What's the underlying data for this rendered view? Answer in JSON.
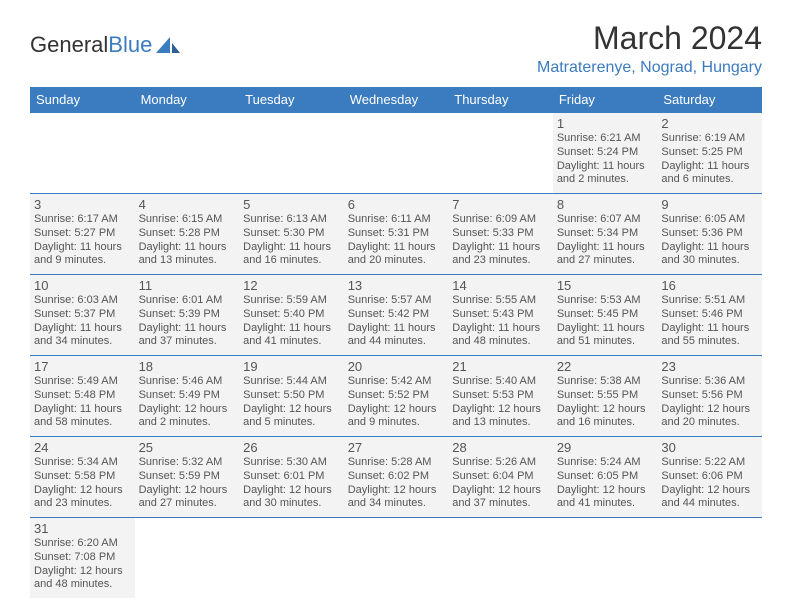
{
  "brand": {
    "text1": "General",
    "text2": "Blue"
  },
  "header": {
    "month": "March 2024",
    "location": "Matraterenye, Nograd, Hungary"
  },
  "colors": {
    "accent": "#3b7bbf",
    "cell_bg": "#f3f3f3",
    "text": "#333333"
  },
  "weekdays": [
    "Sunday",
    "Monday",
    "Tuesday",
    "Wednesday",
    "Thursday",
    "Friday",
    "Saturday"
  ],
  "weeks": [
    [
      null,
      null,
      null,
      null,
      null,
      {
        "d": "1",
        "sr": "Sunrise: 6:21 AM",
        "ss": "Sunset: 5:24 PM",
        "dl1": "Daylight: 11 hours",
        "dl2": "and 2 minutes."
      },
      {
        "d": "2",
        "sr": "Sunrise: 6:19 AM",
        "ss": "Sunset: 5:25 PM",
        "dl1": "Daylight: 11 hours",
        "dl2": "and 6 minutes."
      }
    ],
    [
      {
        "d": "3",
        "sr": "Sunrise: 6:17 AM",
        "ss": "Sunset: 5:27 PM",
        "dl1": "Daylight: 11 hours",
        "dl2": "and 9 minutes."
      },
      {
        "d": "4",
        "sr": "Sunrise: 6:15 AM",
        "ss": "Sunset: 5:28 PM",
        "dl1": "Daylight: 11 hours",
        "dl2": "and 13 minutes."
      },
      {
        "d": "5",
        "sr": "Sunrise: 6:13 AM",
        "ss": "Sunset: 5:30 PM",
        "dl1": "Daylight: 11 hours",
        "dl2": "and 16 minutes."
      },
      {
        "d": "6",
        "sr": "Sunrise: 6:11 AM",
        "ss": "Sunset: 5:31 PM",
        "dl1": "Daylight: 11 hours",
        "dl2": "and 20 minutes."
      },
      {
        "d": "7",
        "sr": "Sunrise: 6:09 AM",
        "ss": "Sunset: 5:33 PM",
        "dl1": "Daylight: 11 hours",
        "dl2": "and 23 minutes."
      },
      {
        "d": "8",
        "sr": "Sunrise: 6:07 AM",
        "ss": "Sunset: 5:34 PM",
        "dl1": "Daylight: 11 hours",
        "dl2": "and 27 minutes."
      },
      {
        "d": "9",
        "sr": "Sunrise: 6:05 AM",
        "ss": "Sunset: 5:36 PM",
        "dl1": "Daylight: 11 hours",
        "dl2": "and 30 minutes."
      }
    ],
    [
      {
        "d": "10",
        "sr": "Sunrise: 6:03 AM",
        "ss": "Sunset: 5:37 PM",
        "dl1": "Daylight: 11 hours",
        "dl2": "and 34 minutes."
      },
      {
        "d": "11",
        "sr": "Sunrise: 6:01 AM",
        "ss": "Sunset: 5:39 PM",
        "dl1": "Daylight: 11 hours",
        "dl2": "and 37 minutes."
      },
      {
        "d": "12",
        "sr": "Sunrise: 5:59 AM",
        "ss": "Sunset: 5:40 PM",
        "dl1": "Daylight: 11 hours",
        "dl2": "and 41 minutes."
      },
      {
        "d": "13",
        "sr": "Sunrise: 5:57 AM",
        "ss": "Sunset: 5:42 PM",
        "dl1": "Daylight: 11 hours",
        "dl2": "and 44 minutes."
      },
      {
        "d": "14",
        "sr": "Sunrise: 5:55 AM",
        "ss": "Sunset: 5:43 PM",
        "dl1": "Daylight: 11 hours",
        "dl2": "and 48 minutes."
      },
      {
        "d": "15",
        "sr": "Sunrise: 5:53 AM",
        "ss": "Sunset: 5:45 PM",
        "dl1": "Daylight: 11 hours",
        "dl2": "and 51 minutes."
      },
      {
        "d": "16",
        "sr": "Sunrise: 5:51 AM",
        "ss": "Sunset: 5:46 PM",
        "dl1": "Daylight: 11 hours",
        "dl2": "and 55 minutes."
      }
    ],
    [
      {
        "d": "17",
        "sr": "Sunrise: 5:49 AM",
        "ss": "Sunset: 5:48 PM",
        "dl1": "Daylight: 11 hours",
        "dl2": "and 58 minutes."
      },
      {
        "d": "18",
        "sr": "Sunrise: 5:46 AM",
        "ss": "Sunset: 5:49 PM",
        "dl1": "Daylight: 12 hours",
        "dl2": "and 2 minutes."
      },
      {
        "d": "19",
        "sr": "Sunrise: 5:44 AM",
        "ss": "Sunset: 5:50 PM",
        "dl1": "Daylight: 12 hours",
        "dl2": "and 5 minutes."
      },
      {
        "d": "20",
        "sr": "Sunrise: 5:42 AM",
        "ss": "Sunset: 5:52 PM",
        "dl1": "Daylight: 12 hours",
        "dl2": "and 9 minutes."
      },
      {
        "d": "21",
        "sr": "Sunrise: 5:40 AM",
        "ss": "Sunset: 5:53 PM",
        "dl1": "Daylight: 12 hours",
        "dl2": "and 13 minutes."
      },
      {
        "d": "22",
        "sr": "Sunrise: 5:38 AM",
        "ss": "Sunset: 5:55 PM",
        "dl1": "Daylight: 12 hours",
        "dl2": "and 16 minutes."
      },
      {
        "d": "23",
        "sr": "Sunrise: 5:36 AM",
        "ss": "Sunset: 5:56 PM",
        "dl1": "Daylight: 12 hours",
        "dl2": "and 20 minutes."
      }
    ],
    [
      {
        "d": "24",
        "sr": "Sunrise: 5:34 AM",
        "ss": "Sunset: 5:58 PM",
        "dl1": "Daylight: 12 hours",
        "dl2": "and 23 minutes."
      },
      {
        "d": "25",
        "sr": "Sunrise: 5:32 AM",
        "ss": "Sunset: 5:59 PM",
        "dl1": "Daylight: 12 hours",
        "dl2": "and 27 minutes."
      },
      {
        "d": "26",
        "sr": "Sunrise: 5:30 AM",
        "ss": "Sunset: 6:01 PM",
        "dl1": "Daylight: 12 hours",
        "dl2": "and 30 minutes."
      },
      {
        "d": "27",
        "sr": "Sunrise: 5:28 AM",
        "ss": "Sunset: 6:02 PM",
        "dl1": "Daylight: 12 hours",
        "dl2": "and 34 minutes."
      },
      {
        "d": "28",
        "sr": "Sunrise: 5:26 AM",
        "ss": "Sunset: 6:04 PM",
        "dl1": "Daylight: 12 hours",
        "dl2": "and 37 minutes."
      },
      {
        "d": "29",
        "sr": "Sunrise: 5:24 AM",
        "ss": "Sunset: 6:05 PM",
        "dl1": "Daylight: 12 hours",
        "dl2": "and 41 minutes."
      },
      {
        "d": "30",
        "sr": "Sunrise: 5:22 AM",
        "ss": "Sunset: 6:06 PM",
        "dl1": "Daylight: 12 hours",
        "dl2": "and 44 minutes."
      }
    ],
    [
      {
        "d": "31",
        "sr": "Sunrise: 6:20 AM",
        "ss": "Sunset: 7:08 PM",
        "dl1": "Daylight: 12 hours",
        "dl2": "and 48 minutes."
      },
      null,
      null,
      null,
      null,
      null,
      null
    ]
  ]
}
